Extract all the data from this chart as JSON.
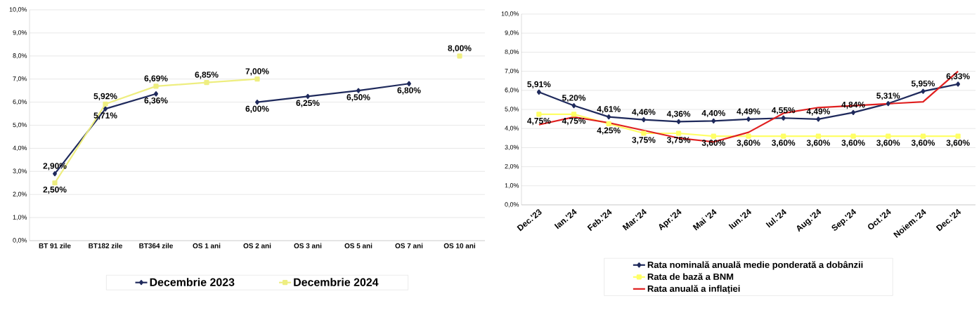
{
  "chart_data": [
    {
      "type": "line",
      "categories": [
        "BT 91 zile",
        "BT182 zile",
        "BT364 zile",
        "OS 1 ani",
        "OS 2 ani",
        "OS 3 ani",
        "OS 5 ani",
        "OS 7 ani",
        "OS 10 ani"
      ],
      "series": [
        {
          "name": "Decembrie 2023",
          "color": "#1f2a5c",
          "marker": "diamond",
          "values": [
            2.9,
            5.71,
            6.36,
            null,
            6.0,
            6.25,
            6.5,
            6.8,
            null
          ],
          "value_labels": [
            "2,90%",
            "5,71%",
            "6,36%",
            null,
            "6,00%",
            "6,25%",
            "6,50%",
            "6,80%",
            null
          ]
        },
        {
          "name": "Decembrie 2024",
          "color": "#eeee80",
          "marker": "square",
          "values": [
            2.5,
            5.92,
            6.69,
            6.85,
            7.0,
            null,
            null,
            null,
            8.0
          ],
          "value_labels": [
            "2,50%",
            "5,92%",
            "6,69%",
            "6,85%",
            "7,00%",
            null,
            null,
            null,
            "8,00%"
          ]
        }
      ],
      "ylim": [
        0,
        10
      ],
      "yticks": [
        {
          "value": 0,
          "label": "0,0%"
        },
        {
          "value": 1,
          "label": "1,0%"
        },
        {
          "value": 2,
          "label": "2,0%"
        },
        {
          "value": 3,
          "label": "3,0%"
        },
        {
          "value": 4,
          "label": "4,0%"
        },
        {
          "value": 5,
          "label": "5,0%"
        },
        {
          "value": 6,
          "label": "6,0%"
        },
        {
          "value": 7,
          "label": "7,0%"
        },
        {
          "value": 8,
          "label": "8,0%"
        },
        {
          "value": 9,
          "label": "9,0%"
        },
        {
          "value": 10,
          "label": "10,0%"
        }
      ],
      "grid": "y",
      "legend": "bottom"
    },
    {
      "type": "line",
      "categories": [
        "Dec.'23",
        "Ian.'24",
        "Feb.'24",
        "Mar.'24",
        "Apr.'24",
        "Mai '24",
        "Iun.'24",
        "Iul.'24",
        "Aug.'24",
        "Sep.'24",
        "Oct.'24",
        "Noiem.'24",
        "Dec.'24"
      ],
      "series": [
        {
          "name": "Rata nominală anuală medie ponderată a dobânzii",
          "color": "#1f2a5c",
          "marker": "diamond",
          "values": [
            5.91,
            5.2,
            4.61,
            4.46,
            4.36,
            4.4,
            4.49,
            4.55,
            4.49,
            4.84,
            5.31,
            5.95,
            6.33
          ],
          "value_labels": [
            "5,91%",
            "5,20%",
            "4,61%",
            "4,46%",
            "4,36%",
            "4,40%",
            "4,49%",
            "4,55%",
            "4,49%",
            "4,84%",
            "5,31%",
            "5,95%",
            "6,33%"
          ]
        },
        {
          "name": "Rata de bază a BNM",
          "color": "#ffff66",
          "marker": "square",
          "values": [
            4.75,
            4.75,
            4.25,
            3.75,
            3.75,
            3.6,
            3.6,
            3.6,
            3.6,
            3.6,
            3.6,
            3.6,
            3.6
          ],
          "value_labels": [
            "4,75%",
            "4,75%",
            "4,25%",
            "3,75%",
            "3,75%",
            "3,60%",
            "3,60%",
            "3,60%",
            "3,60%",
            "3,60%",
            "3,60%",
            "3,60%",
            "3,60%"
          ]
        },
        {
          "name": "Rata anuală a inflației",
          "color": "#e02020",
          "marker": "none",
          "values": [
            4.2,
            4.6,
            4.3,
            3.9,
            3.5,
            3.3,
            3.8,
            4.8,
            5.1,
            5.2,
            5.3,
            5.4,
            7.0
          ]
        }
      ],
      "ylim": [
        0,
        10
      ],
      "yticks": [
        {
          "value": 0,
          "label": "0,0%"
        },
        {
          "value": 1,
          "label": "1,0%"
        },
        {
          "value": 2,
          "label": "2,0%"
        },
        {
          "value": 3,
          "label": "3,0%"
        },
        {
          "value": 4,
          "label": "4,0%"
        },
        {
          "value": 5,
          "label": "5,0%"
        },
        {
          "value": 6,
          "label": "6,0%"
        },
        {
          "value": 7,
          "label": "7,0%"
        },
        {
          "value": 8,
          "label": "8,0%"
        },
        {
          "value": 9,
          "label": "9,0%"
        },
        {
          "value": 10,
          "label": "10,0%"
        }
      ],
      "grid": "y",
      "legend": "bottom"
    }
  ]
}
